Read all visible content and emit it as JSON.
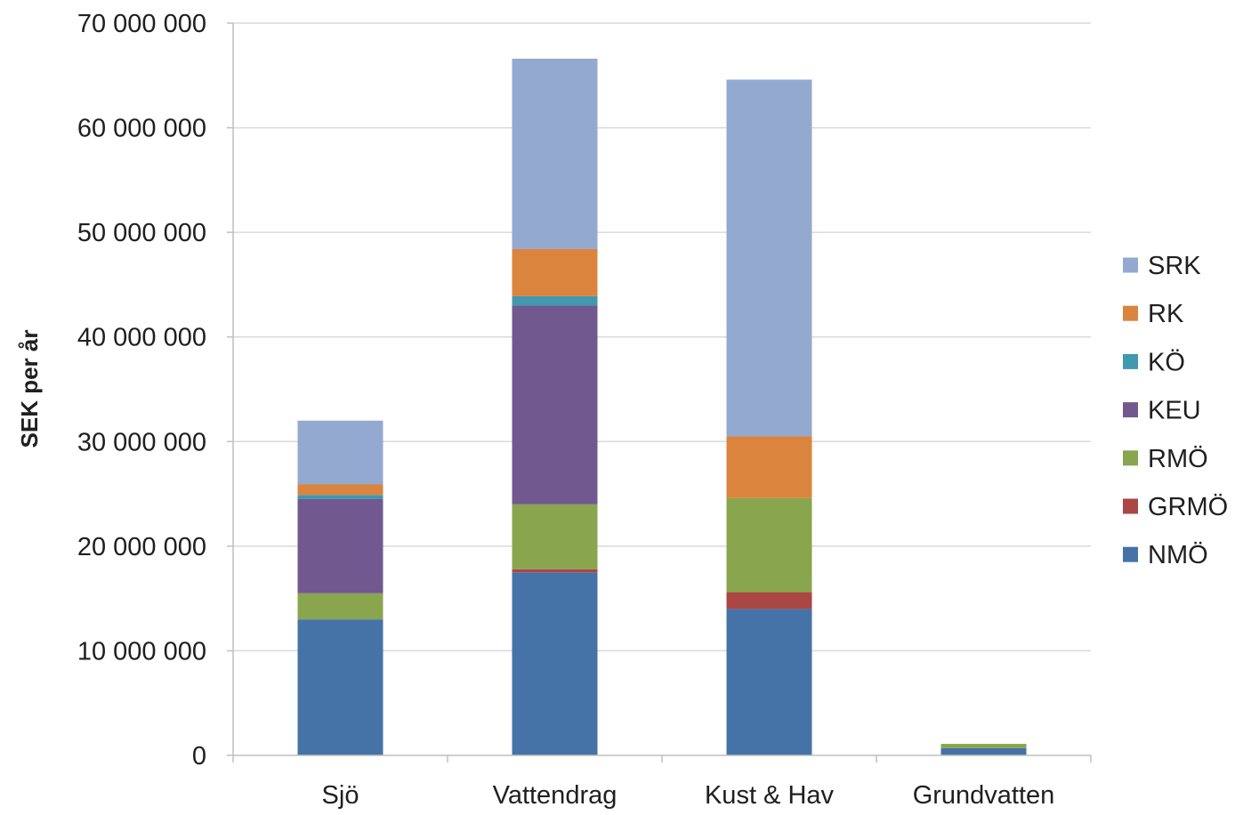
{
  "chart_data": {
    "type": "bar",
    "stacked": true,
    "ylabel": "SEK per år",
    "xlabel": "",
    "ylim": [
      0,
      70000000
    ],
    "ytick_step": 10000000,
    "yticks": [
      "0",
      "10 000 000",
      "20 000 000",
      "30 000 000",
      "40 000 000",
      "50 000 000",
      "60 000 000",
      "70 000 000"
    ],
    "grid": true,
    "legend_position": "right",
    "categories": [
      "Sjö",
      "Vattendrag",
      "Kust & Hav",
      "Grundvatten"
    ],
    "series": [
      {
        "name": "NMÖ",
        "color": "#4572A7",
        "values": [
          13000000,
          17500000,
          14000000,
          700000
        ]
      },
      {
        "name": "GRMÖ",
        "color": "#AA4643",
        "values": [
          0,
          300000,
          1600000,
          0
        ]
      },
      {
        "name": "RMÖ",
        "color": "#89A54E",
        "values": [
          2500000,
          6200000,
          9000000,
          400000
        ]
      },
      {
        "name": "KEU",
        "color": "#71588F",
        "values": [
          9000000,
          19000000,
          0,
          0
        ]
      },
      {
        "name": "KÖ",
        "color": "#4198AF",
        "values": [
          400000,
          900000,
          0,
          0
        ]
      },
      {
        "name": "RK",
        "color": "#DB843D",
        "values": [
          1000000,
          4500000,
          5900000,
          0
        ]
      },
      {
        "name": "SRK",
        "color": "#93A9CF",
        "values": [
          6100000,
          18200000,
          34100000,
          0
        ]
      }
    ]
  }
}
